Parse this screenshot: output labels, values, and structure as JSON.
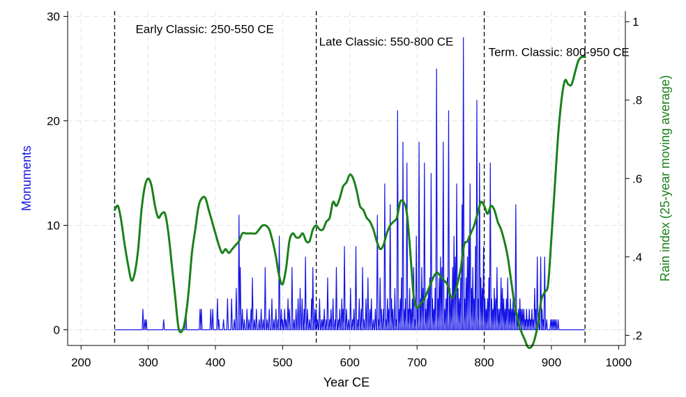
{
  "chart_data": {
    "type": "line",
    "xlabel": "Year CE",
    "ylabel_left": "Monuments",
    "ylabel_right": "Rain index (25-year moving average)",
    "xlim": [
      180,
      1010
    ],
    "ylim_left": [
      -1.5,
      30.5
    ],
    "ylim_right": [
      0.174,
      1.027
    ],
    "x_ticks": [
      200,
      300,
      400,
      500,
      600,
      700,
      800,
      900,
      1000
    ],
    "y_ticks_left": [
      0,
      10,
      20,
      30
    ],
    "y_ticks_right": [
      {
        "value": 0.2,
        "label": ".2"
      },
      {
        "value": 0.4,
        "label": ".4"
      },
      {
        "value": 0.6,
        "label": ".6"
      },
      {
        "value": 0.8,
        "label": ".8"
      },
      {
        "value": 1.0,
        "label": "1"
      }
    ],
    "grid": true,
    "colors": {
      "monuments": "#1414e6",
      "rain": "#1a801a",
      "period_lines": "#000000",
      "grid": "#e4e4e4"
    },
    "periods": [
      {
        "label": "Early Classic: 250-550 CE",
        "start": 250,
        "end": 550
      },
      {
        "label": "Late Classic: 550-800 CE",
        "start": 550,
        "end": 800
      },
      {
        "label": "Term. Classic: 800-950 CE",
        "start": 800,
        "end": 950
      }
    ],
    "period_boundaries": [
      250,
      550,
      800,
      950
    ],
    "series": [
      {
        "name": "Monuments",
        "axis": "left",
        "x_range": [
          250,
          950
        ],
        "baseline": 0,
        "spikes": [
          [
            292,
            2
          ],
          [
            295,
            1
          ],
          [
            297,
            1
          ],
          [
            323,
            1
          ],
          [
            356,
            2
          ],
          [
            377,
            2
          ],
          [
            379,
            2
          ],
          [
            393,
            2
          ],
          [
            396,
            2
          ],
          [
            403,
            3
          ],
          [
            405,
            1
          ],
          [
            412,
            1
          ],
          [
            418,
            3
          ],
          [
            424,
            3
          ],
          [
            428,
            1
          ],
          [
            431,
            4
          ],
          [
            435,
            11
          ],
          [
            437,
            6
          ],
          [
            440,
            2
          ],
          [
            443,
            1
          ],
          [
            447,
            2
          ],
          [
            450,
            1
          ],
          [
            453,
            2
          ],
          [
            455,
            5
          ],
          [
            458,
            1
          ],
          [
            461,
            2
          ],
          [
            465,
            1
          ],
          [
            468,
            2
          ],
          [
            471,
            1
          ],
          [
            474,
            6
          ],
          [
            477,
            1
          ],
          [
            480,
            2
          ],
          [
            484,
            3
          ],
          [
            487,
            1
          ],
          [
            490,
            2
          ],
          [
            493,
            1
          ],
          [
            495,
            9
          ],
          [
            498,
            2
          ],
          [
            500,
            1
          ],
          [
            503,
            2
          ],
          [
            505,
            1
          ],
          [
            508,
            3
          ],
          [
            510,
            2
          ],
          [
            514,
            6
          ],
          [
            517,
            1
          ],
          [
            520,
            2
          ],
          [
            523,
            3
          ],
          [
            526,
            4
          ],
          [
            529,
            3
          ],
          [
            532,
            2
          ],
          [
            534,
            7
          ],
          [
            537,
            2
          ],
          [
            540,
            1
          ],
          [
            543,
            3
          ],
          [
            545,
            6
          ],
          [
            548,
            2
          ],
          [
            550,
            2
          ],
          [
            552,
            1
          ],
          [
            555,
            3
          ],
          [
            558,
            1
          ],
          [
            560,
            1
          ],
          [
            562,
            2
          ],
          [
            565,
            1
          ],
          [
            567,
            5
          ],
          [
            570,
            1
          ],
          [
            572,
            2
          ],
          [
            575,
            3
          ],
          [
            578,
            1
          ],
          [
            580,
            6
          ],
          [
            583,
            1
          ],
          [
            585,
            2
          ],
          [
            588,
            3
          ],
          [
            590,
            2
          ],
          [
            592,
            8
          ],
          [
            595,
            2
          ],
          [
            598,
            1
          ],
          [
            601,
            4
          ],
          [
            604,
            1
          ],
          [
            606,
            2
          ],
          [
            609,
            8
          ],
          [
            612,
            1
          ],
          [
            614,
            3
          ],
          [
            617,
            2
          ],
          [
            619,
            6
          ],
          [
            621,
            1
          ],
          [
            624,
            3
          ],
          [
            627,
            5
          ],
          [
            630,
            2
          ],
          [
            632,
            3
          ],
          [
            635,
            1
          ],
          [
            638,
            2
          ],
          [
            641,
            11
          ],
          [
            643,
            1
          ],
          [
            645,
            5
          ],
          [
            647,
            2
          ],
          [
            650,
            2
          ],
          [
            652,
            14
          ],
          [
            654,
            1
          ],
          [
            656,
            3
          ],
          [
            658,
            2
          ],
          [
            660,
            12
          ],
          [
            662,
            3
          ],
          [
            664,
            2
          ],
          [
            667,
            4
          ],
          [
            669,
            1
          ],
          [
            671,
            21
          ],
          [
            673,
            2
          ],
          [
            675,
            3
          ],
          [
            677,
            5
          ],
          [
            679,
            18
          ],
          [
            681,
            2
          ],
          [
            683,
            3
          ],
          [
            685,
            16
          ],
          [
            687,
            2
          ],
          [
            689,
            4
          ],
          [
            691,
            2
          ],
          [
            693,
            3
          ],
          [
            695,
            6
          ],
          [
            697,
            1
          ],
          [
            699,
            9
          ],
          [
            701,
            2
          ],
          [
            703,
            18
          ],
          [
            705,
            3
          ],
          [
            707,
            6
          ],
          [
            709,
            4
          ],
          [
            711,
            16
          ],
          [
            713,
            2
          ],
          [
            715,
            3
          ],
          [
            717,
            4
          ],
          [
            719,
            5
          ],
          [
            721,
            15
          ],
          [
            723,
            3
          ],
          [
            725,
            2
          ],
          [
            727,
            4
          ],
          [
            729,
            25
          ],
          [
            731,
            3
          ],
          [
            733,
            5
          ],
          [
            735,
            7
          ],
          [
            737,
            6
          ],
          [
            739,
            18
          ],
          [
            741,
            2
          ],
          [
            743,
            3
          ],
          [
            745,
            5
          ],
          [
            747,
            21
          ],
          [
            749,
            4
          ],
          [
            751,
            3
          ],
          [
            753,
            6
          ],
          [
            755,
            9
          ],
          [
            757,
            7
          ],
          [
            759,
            14
          ],
          [
            761,
            4
          ],
          [
            763,
            3
          ],
          [
            765,
            5
          ],
          [
            767,
            12
          ],
          [
            769,
            28
          ],
          [
            771,
            3
          ],
          [
            773,
            5
          ],
          [
            775,
            7
          ],
          [
            777,
            9
          ],
          [
            779,
            14
          ],
          [
            781,
            4
          ],
          [
            783,
            6
          ],
          [
            785,
            3
          ],
          [
            787,
            8
          ],
          [
            789,
            22
          ],
          [
            791,
            3
          ],
          [
            793,
            16
          ],
          [
            795,
            5
          ],
          [
            797,
            4
          ],
          [
            799,
            8
          ],
          [
            801,
            3
          ],
          [
            803,
            2
          ],
          [
            805,
            3
          ],
          [
            807,
            5
          ],
          [
            809,
            16
          ],
          [
            811,
            3
          ],
          [
            813,
            2
          ],
          [
            815,
            4
          ],
          [
            817,
            3
          ],
          [
            819,
            6
          ],
          [
            821,
            2
          ],
          [
            823,
            2
          ],
          [
            825,
            5
          ],
          [
            827,
            4
          ],
          [
            829,
            3
          ],
          [
            831,
            2
          ],
          [
            833,
            3
          ],
          [
            835,
            5
          ],
          [
            837,
            2
          ],
          [
            839,
            3
          ],
          [
            841,
            2
          ],
          [
            843,
            3
          ],
          [
            845,
            2
          ],
          [
            847,
            12
          ],
          [
            849,
            1
          ],
          [
            851,
            2
          ],
          [
            853,
            3
          ],
          [
            855,
            2
          ],
          [
            857,
            2
          ],
          [
            859,
            2
          ],
          [
            861,
            1
          ],
          [
            863,
            2
          ],
          [
            865,
            1
          ],
          [
            867,
            2
          ],
          [
            869,
            1
          ],
          [
            871,
            2
          ],
          [
            873,
            1
          ],
          [
            875,
            4
          ],
          [
            877,
            2
          ],
          [
            879,
            7
          ],
          [
            881,
            1
          ],
          [
            884,
            7
          ],
          [
            886,
            2
          ],
          [
            888,
            1
          ],
          [
            890,
            7
          ],
          [
            893,
            1
          ],
          [
            899,
            1
          ],
          [
            901,
            1
          ],
          [
            903,
            1
          ],
          [
            905,
            1
          ],
          [
            907,
            1
          ],
          [
            910,
            1
          ]
        ]
      },
      {
        "name": "Rain index (25-year moving average)",
        "axis": "right",
        "x": [
          250,
          255,
          260,
          265,
          270,
          275,
          280,
          285,
          290,
          295,
          300,
          305,
          310,
          315,
          320,
          325,
          330,
          335,
          340,
          345,
          350,
          355,
          360,
          365,
          370,
          375,
          380,
          385,
          390,
          395,
          400,
          405,
          410,
          415,
          420,
          425,
          430,
          435,
          440,
          445,
          450,
          455,
          460,
          465,
          470,
          475,
          480,
          485,
          490,
          495,
          500,
          505,
          510,
          515,
          520,
          525,
          530,
          535,
          540,
          545,
          550,
          555,
          560,
          565,
          570,
          575,
          580,
          585,
          590,
          595,
          600,
          605,
          610,
          615,
          620,
          625,
          630,
          635,
          640,
          645,
          650,
          655,
          660,
          665,
          670,
          675,
          680,
          685,
          690,
          695,
          700,
          705,
          710,
          715,
          720,
          725,
          730,
          735,
          740,
          745,
          750,
          755,
          760,
          765,
          770,
          775,
          780,
          785,
          790,
          795,
          800,
          805,
          810,
          815,
          820,
          825,
          830,
          835,
          840,
          845,
          850,
          855,
          860,
          865,
          870,
          875,
          880,
          885,
          890,
          895,
          900,
          905,
          910,
          915,
          920,
          925,
          930,
          935,
          940,
          945,
          950
        ],
        "y": [
          0.52,
          0.53,
          0.49,
          0.43,
          0.38,
          0.34,
          0.36,
          0.42,
          0.52,
          0.58,
          0.6,
          0.58,
          0.53,
          0.5,
          0.51,
          0.51,
          0.46,
          0.38,
          0.3,
          0.22,
          0.21,
          0.24,
          0.31,
          0.41,
          0.47,
          0.53,
          0.55,
          0.55,
          0.52,
          0.49,
          0.46,
          0.43,
          0.41,
          0.42,
          0.41,
          0.42,
          0.43,
          0.44,
          0.46,
          0.46,
          0.46,
          0.46,
          0.46,
          0.47,
          0.48,
          0.48,
          0.47,
          0.44,
          0.4,
          0.35,
          0.33,
          0.37,
          0.44,
          0.46,
          0.45,
          0.45,
          0.46,
          0.44,
          0.44,
          0.47,
          0.48,
          0.47,
          0.47,
          0.49,
          0.5,
          0.54,
          0.53,
          0.55,
          0.58,
          0.59,
          0.61,
          0.6,
          0.57,
          0.53,
          0.52,
          0.5,
          0.49,
          0.47,
          0.44,
          0.42,
          0.43,
          0.46,
          0.48,
          0.49,
          0.5,
          0.54,
          0.54,
          0.51,
          0.41,
          0.3,
          0.27,
          0.28,
          0.29,
          0.31,
          0.33,
          0.35,
          0.36,
          0.35,
          0.34,
          0.33,
          0.3,
          0.3,
          0.33,
          0.37,
          0.43,
          0.44,
          0.46,
          0.48,
          0.51,
          0.54,
          0.53,
          0.51,
          0.53,
          0.52,
          0.49,
          0.47,
          0.44,
          0.4,
          0.34,
          0.28,
          0.24,
          0.21,
          0.19,
          0.17,
          0.17,
          0.19,
          0.23,
          0.29,
          0.31,
          0.33,
          0.45,
          0.58,
          0.71,
          0.8,
          0.85,
          0.84,
          0.84,
          0.87,
          0.9,
          0.91,
          0.91
        ]
      }
    ]
  }
}
